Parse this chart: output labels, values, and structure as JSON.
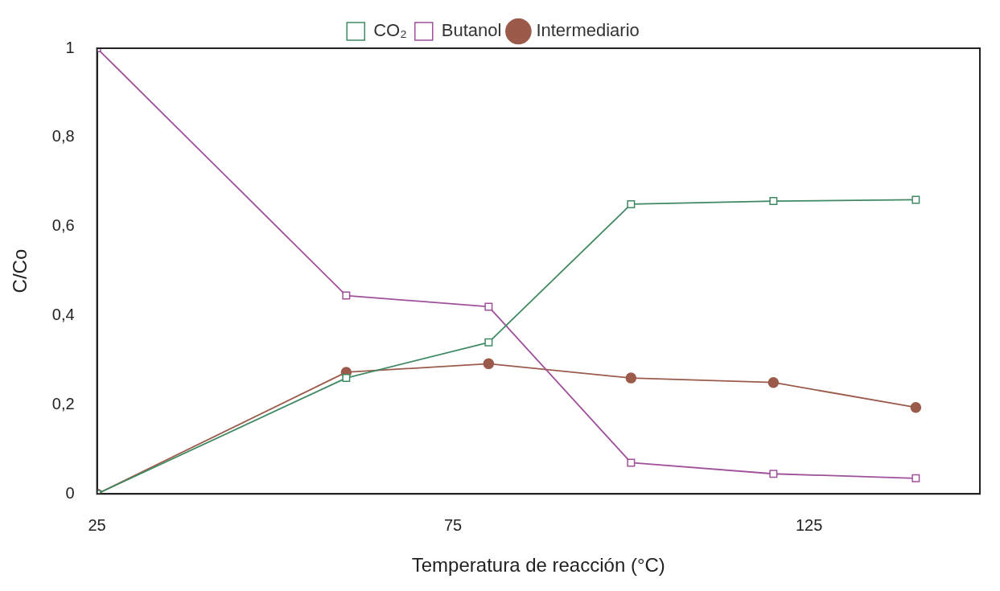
{
  "chart_data": {
    "type": "line",
    "xlabel": "Temperatura de reacción (°C)",
    "ylabel": "C/Co",
    "x": [
      25,
      60,
      80,
      100,
      120,
      140
    ],
    "xlim": [
      25,
      149
    ],
    "xticks": [
      25,
      75,
      125
    ],
    "ylim": [
      0,
      1
    ],
    "yticks": [
      {
        "value": 0,
        "label": "0"
      },
      {
        "value": 0.2,
        "label": "0,2"
      },
      {
        "value": 0.4,
        "label": "0,4"
      },
      {
        "value": 0.6,
        "label": "0,6"
      },
      {
        "value": 0.8,
        "label": "0,8"
      },
      {
        "value": 1,
        "label": "1"
      }
    ],
    "grid": false,
    "legend": "top",
    "line_style": "solid",
    "series": [
      {
        "name": "CO₂",
        "color": "#3f8a63",
        "marker": "square",
        "values": [
          0,
          0.26,
          0.34,
          0.65,
          0.657,
          0.66
        ]
      },
      {
        "name": "Butanol",
        "color": "#a0509a",
        "marker": "square",
        "values": [
          1,
          0.445,
          0.42,
          0.07,
          0.045,
          0.035
        ]
      },
      {
        "name": "Intermediario",
        "color": "#9b5a4a",
        "marker": "circle",
        "values": [
          0,
          0.273,
          0.292,
          0.26,
          0.25,
          0.194
        ]
      }
    ]
  }
}
